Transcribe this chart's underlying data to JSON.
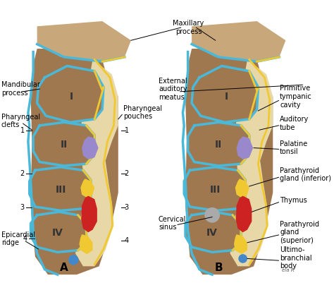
{
  "title": "",
  "background_color": "#ffffff",
  "label_A": "A",
  "label_B": "B",
  "label_maxillary": "Maxillary\nprocess",
  "label_mandibular": "Mandibular\nprocess",
  "label_pharyngeal_clefts": "Pharyngeal\nclefts",
  "label_pharyngeal_pouches": "Pharyngeal\npouches",
  "label_epicardial": "Epicardial\nridge",
  "label_external_auditory": "External\nauditory\nmeatus",
  "label_primitive_tympanic": "Primitive\ntympanic\ncavity",
  "label_auditory_tube": "Auditory\ntube",
  "label_palatine_tonsil": "Palatine\ntonsil",
  "label_parathyroid_inferior": "Parathyroid\ngland (inferior)",
  "label_thymus": "Thymus",
  "label_cervical_sinus": "Cervical\nsinus",
  "label_parathyroid_superior": "Parathyroid\ngland\n(superior)",
  "label_ultimobranchial": "Ultimo-\nbranchial\nbody",
  "skin_color": "#c8a87a",
  "skin_dark": "#a07850",
  "outline_blue": "#4ab8d8",
  "outline_yellow": "#f0c832",
  "outline_tan": "#e8d8a8",
  "red_color": "#cc2222",
  "yellow_blob": "#f0c832",
  "purple_color": "#9988cc",
  "blue_dot": "#4488cc",
  "gray_color": "#aaaaaa",
  "roman_I": "I",
  "roman_II": "II",
  "roman_III": "III",
  "roman_IV": "IV",
  "text_color": "#000000",
  "fontsize_label": 7,
  "fontsize_roman": 10,
  "fontsize_AB": 11
}
